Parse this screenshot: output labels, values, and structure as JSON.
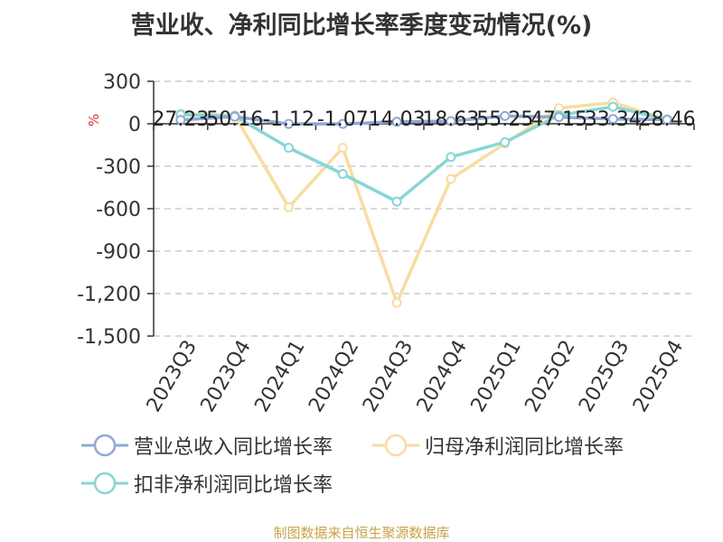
{
  "chart_data": {
    "type": "line",
    "title": "营业收、净利同比增长率季度变动情况(%)",
    "ylabel": "%",
    "xlabel": "",
    "categories": [
      "2023Q3",
      "2023Q4",
      "2024Q1",
      "2024Q2",
      "2024Q3",
      "2024Q4",
      "2025Q1",
      "2025Q2",
      "2025Q3",
      "2025Q4"
    ],
    "y_ticks": [
      "300",
      "0",
      "-300",
      "-600",
      "-900",
      "-1,200",
      "-1,500"
    ],
    "ylim": [
      -1500,
      300
    ],
    "grid": true,
    "legend_position": "bottom",
    "series": [
      {
        "name": "营业总收入同比增长率",
        "color": "#8fa9d6",
        "values": [
          27.23,
          50.16,
          -1.12,
          -1.07,
          14.03,
          18.63,
          55.25,
          47.15,
          33.34,
          28.46
        ],
        "labels": [
          "27.23",
          "50.16",
          "-1.12",
          "-1.07",
          "14.03",
          "18.63",
          "55.25",
          "47.15",
          "33.34",
          "28.46"
        ]
      },
      {
        "name": "归母净利润同比增长率",
        "color": "#f9dca0",
        "values": [
          70,
          60,
          -590,
          -170,
          -1265,
          -390,
          -140,
          110,
          150,
          30
        ]
      },
      {
        "name": "扣非净利润同比增长率",
        "color": "#88d6d6",
        "values": [
          65,
          55,
          -170,
          -355,
          -550,
          -235,
          -130,
          60,
          120,
          30
        ]
      }
    ]
  },
  "footer": {
    "source": "制图数据来自恒生聚源数据库"
  }
}
